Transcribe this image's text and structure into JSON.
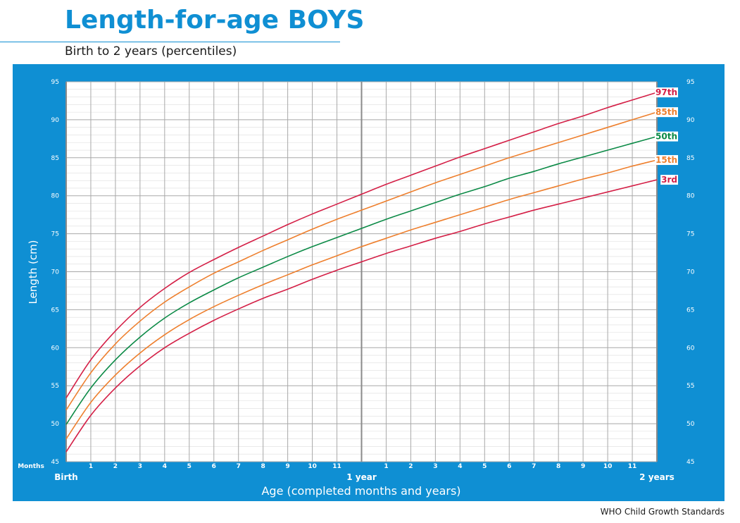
{
  "header": {
    "title": "Length-for-age BOYS",
    "subtitle": "Birth to 2 years (percentiles)"
  },
  "footer": {
    "source": "WHO Child Growth Standards"
  },
  "colors": {
    "panel": "#0f8fd3",
    "p97": "#d41f46",
    "p85": "#ee7f2d",
    "p50": "#0b8a46",
    "p15": "#ee7f2d",
    "p3": "#d41f46"
  },
  "chart_data": {
    "type": "line",
    "ylabel": "Length (cm)",
    "xlabel": "Age (completed months and years)",
    "x_units_label": "Months",
    "xlim": [
      0,
      24
    ],
    "ylim": [
      45,
      95
    ],
    "y_ticks": [
      45,
      50,
      55,
      60,
      65,
      70,
      75,
      80,
      85,
      90,
      95
    ],
    "x_month_ticks": [
      {
        "month": 1,
        "label": "1"
      },
      {
        "month": 2,
        "label": "2"
      },
      {
        "month": 3,
        "label": "3"
      },
      {
        "month": 4,
        "label": "4"
      },
      {
        "month": 5,
        "label": "5"
      },
      {
        "month": 6,
        "label": "6"
      },
      {
        "month": 7,
        "label": "7"
      },
      {
        "month": 8,
        "label": "8"
      },
      {
        "month": 9,
        "label": "9"
      },
      {
        "month": 10,
        "label": "10"
      },
      {
        "month": 11,
        "label": "11"
      },
      {
        "month": 13,
        "label": "1"
      },
      {
        "month": 14,
        "label": "2"
      },
      {
        "month": 15,
        "label": "3"
      },
      {
        "month": 16,
        "label": "4"
      },
      {
        "month": 17,
        "label": "5"
      },
      {
        "month": 18,
        "label": "6"
      },
      {
        "month": 19,
        "label": "7"
      },
      {
        "month": 20,
        "label": "8"
      },
      {
        "month": 21,
        "label": "9"
      },
      {
        "month": 22,
        "label": "10"
      },
      {
        "month": 23,
        "label": "11"
      }
    ],
    "x_major_labels": [
      {
        "month": 0,
        "label": "Birth"
      },
      {
        "month": 12,
        "label": "1 year"
      },
      {
        "month": 24,
        "label": "2 years"
      }
    ],
    "x": [
      0,
      1,
      2,
      3,
      4,
      5,
      6,
      7,
      8,
      9,
      10,
      11,
      12,
      13,
      14,
      15,
      16,
      17,
      18,
      19,
      20,
      21,
      22,
      23,
      24
    ],
    "series": [
      {
        "name": "97th",
        "color_key": "p97",
        "values": [
          53.4,
          58.4,
          62.2,
          65.3,
          67.8,
          69.9,
          71.6,
          73.2,
          74.7,
          76.2,
          77.6,
          78.9,
          80.2,
          81.5,
          82.7,
          83.9,
          85.1,
          86.2,
          87.3,
          88.4,
          89.5,
          90.5,
          91.6,
          92.6,
          93.6
        ]
      },
      {
        "name": "85th",
        "color_key": "p85",
        "values": [
          51.8,
          56.7,
          60.5,
          63.5,
          66.0,
          68.0,
          69.8,
          71.3,
          72.8,
          74.2,
          75.6,
          76.9,
          78.1,
          79.3,
          80.5,
          81.7,
          82.8,
          83.9,
          85.0,
          86.0,
          87.0,
          88.0,
          89.0,
          90.0,
          91.0
        ]
      },
      {
        "name": "50th",
        "color_key": "p50",
        "values": [
          49.9,
          54.7,
          58.4,
          61.4,
          63.9,
          65.9,
          67.6,
          69.2,
          70.6,
          72.0,
          73.3,
          74.5,
          75.7,
          76.9,
          78.0,
          79.1,
          80.2,
          81.2,
          82.3,
          83.2,
          84.2,
          85.1,
          86.0,
          86.9,
          87.8
        ]
      },
      {
        "name": "15th",
        "color_key": "p15",
        "values": [
          48.0,
          52.8,
          56.4,
          59.3,
          61.7,
          63.7,
          65.4,
          66.9,
          68.3,
          69.6,
          70.9,
          72.1,
          73.3,
          74.4,
          75.5,
          76.5,
          77.5,
          78.5,
          79.5,
          80.4,
          81.3,
          82.2,
          83.0,
          83.9,
          84.7
        ]
      },
      {
        "name": "3rd",
        "color_key": "p3",
        "values": [
          46.3,
          51.1,
          54.7,
          57.6,
          60.0,
          61.9,
          63.6,
          65.1,
          66.5,
          67.7,
          69.0,
          70.2,
          71.3,
          72.4,
          73.4,
          74.4,
          75.3,
          76.3,
          77.2,
          78.1,
          78.9,
          79.7,
          80.5,
          81.3,
          82.1
        ]
      }
    ]
  }
}
